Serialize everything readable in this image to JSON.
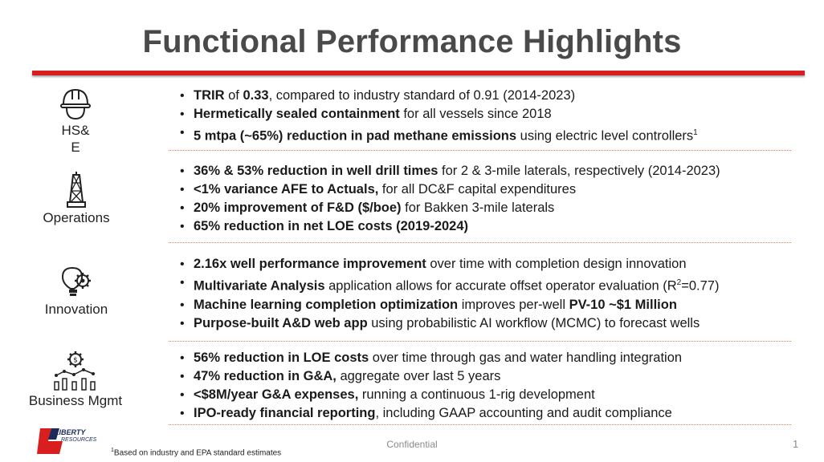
{
  "title": "Functional Performance Highlights",
  "colors": {
    "accent_red": "#d81e1e",
    "title_gray": "#4a4a4a",
    "divider": "#d87a5a"
  },
  "sections": [
    {
      "category": "HS& E",
      "icon": "hard-hat-icon",
      "bullets": [
        {
          "bold": "TRIR",
          "mid": " of ",
          "bold2": "0.33",
          "text": ", compared to industry standard of 0.91 (2014-2023)"
        },
        {
          "bold": "Hermetically sealed containment",
          "text": " for all vessels since 2018"
        },
        {
          "bold": "5 mtpa (~65%) reduction in pad methane emissions",
          "text": " using electric level controllers",
          "sup": "1"
        }
      ]
    },
    {
      "category": "Operations",
      "icon": "drilling-rig-icon",
      "bullets": [
        {
          "bold": "36% & 53% reduction in well drill times",
          "text": " for 2 & 3-mile laterals, respectively (2014-2023)"
        },
        {
          "bold": "<1% variance AFE to Actuals,",
          "text": " for all DC&F capital expenditures"
        },
        {
          "bold": "20% improvement of F&D ($/boe)",
          "text": " for Bakken 3-mile laterals"
        },
        {
          "bold": "65% reduction in net LOE costs (2019-2024)",
          "text": ""
        }
      ]
    },
    {
      "category": "Innovation",
      "icon": "lightbulb-gear-icon",
      "bullets": [
        {
          "bold": "2.16x well performance improvement",
          "text": " over time with completion design innovation"
        },
        {
          "bold": "Multivariate Analysis",
          "text": " application allows for accurate offset operator evaluation (R",
          "sup": "2",
          "tail": "=0.77)"
        },
        {
          "bold": "Machine learning completion optimization",
          "text": " improves per-well ",
          "bold2": "PV-10 ~$1 Million"
        },
        {
          "bold": "Purpose-built A&D web app",
          "text": " using probabilistic AI workflow (MCMC) to forecast wells"
        }
      ]
    },
    {
      "category": "Business Mgmt",
      "icon": "dollar-gear-chart-icon",
      "bullets": [
        {
          "bold": "56% reduction in LOE costs",
          "text": " over time through gas and water handling integration"
        },
        {
          "bold": "47% reduction in G&A,",
          "text": " aggregate over last 5 years"
        },
        {
          "bold": "<$8M/year G&A expenses,",
          "text": " running a continuous 1-rig development"
        },
        {
          "bold": "IPO-ready financial reporting",
          "text": ", including GAAP accounting and audit compliance"
        }
      ]
    }
  ],
  "footer": {
    "footnote_sup": "1",
    "footnote": "Based on industry and EPA standard estimates",
    "confidential": "Confidential",
    "page_number": "1",
    "logo_name": "LIBERTY",
    "logo_sub": "RESOURCES"
  }
}
